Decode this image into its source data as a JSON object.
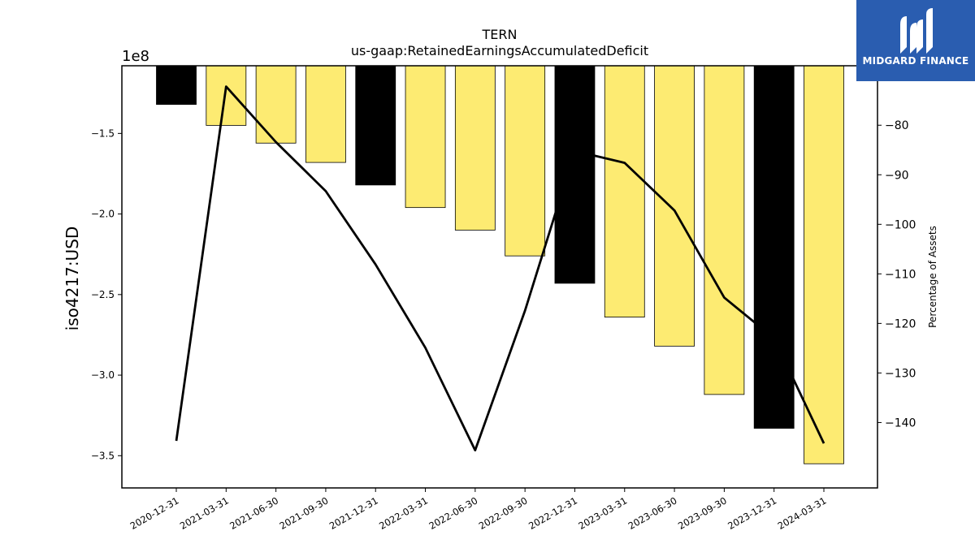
{
  "brand": {
    "name": "MIDGARD FINANCE",
    "bg_color": "#2a5db0"
  },
  "colors": {
    "bar_yellow": "#fdeb72",
    "bar_black": "#000000",
    "line": "#000000"
  },
  "chart_data": {
    "type": "bar+line",
    "title": "TERN",
    "subtitle": "us-gaap:RetainedEarningsAccumulatedDeficit",
    "ylabel_left": "iso4217:USD",
    "left_scale_label": "1e8",
    "ylabel_right": "Percentage of Assets",
    "categories": [
      "2020-12-31",
      "2021-03-31",
      "2021-06-30",
      "2021-09-30",
      "2021-12-31",
      "2022-03-31",
      "2022-06-30",
      "2022-09-30",
      "2022-12-31",
      "2023-03-31",
      "2023-06-30",
      "2023-09-30",
      "2023-12-31",
      "2024-03-31"
    ],
    "bar_values": [
      -132000000,
      -145000000,
      -156000000,
      -168000000,
      -182000000,
      -196000000,
      -210000000,
      -226000000,
      -243000000,
      -264000000,
      -282000000,
      -312000000,
      -333000000,
      -355000000
    ],
    "bar_kind": [
      "annual",
      "quarter",
      "quarter",
      "quarter",
      "annual",
      "quarter",
      "quarter",
      "quarter",
      "annual",
      "quarter",
      "quarter",
      "quarter",
      "annual",
      "quarter"
    ],
    "line_values": [
      -143.7,
      -72.2,
      -83.4,
      -93.3,
      -108.1,
      -124.9,
      -145.6,
      -117.4,
      -85.2,
      -87.6,
      -97.2,
      -114.8,
      -123.0,
      -144.2
    ],
    "ylim_left": [
      -370000000,
      -108000000
    ],
    "ylim_right": [
      -153.2,
      -68.0
    ],
    "yticks_left": [
      -350000000,
      -300000000,
      -250000000,
      -200000000,
      -150000000
    ],
    "ytick_labels_left": [
      "−3.5",
      "−3.0",
      "−2.5",
      "−2.0",
      "−1.5"
    ],
    "yticks_right": [
      -140,
      -130,
      -120,
      -110,
      -100,
      -90,
      -80
    ],
    "ytick_labels_right": [
      "−140",
      "−130",
      "−120",
      "−110",
      "−100",
      "−90",
      "−80"
    ],
    "grid": false,
    "legend": "none"
  }
}
